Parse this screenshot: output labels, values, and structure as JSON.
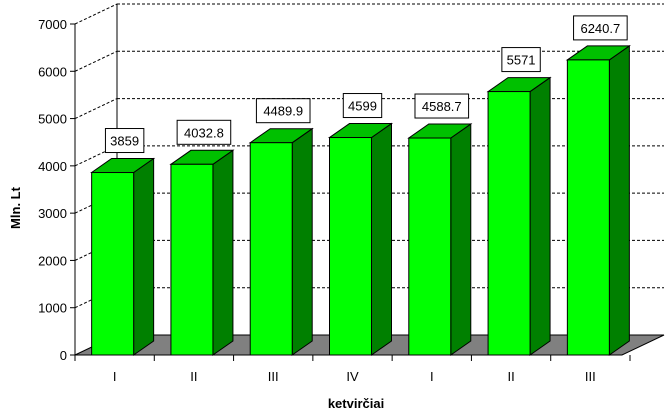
{
  "chart_data": {
    "type": "bar",
    "title": "",
    "xlabel": "ketvirčiai",
    "ylabel": "Mln. Lt",
    "categories": [
      "I",
      "II",
      "III",
      "IV",
      "I",
      "II",
      "III"
    ],
    "values": [
      3859,
      4032.8,
      4489.9,
      4599,
      4588.7,
      5571,
      6240.7
    ],
    "data_labels": [
      "3859",
      "4032.8",
      "4489.9",
      "4599",
      "4588.7",
      "5571",
      "6240.7"
    ],
    "ylim": [
      0,
      7000
    ],
    "yticks": [
      "0",
      "1000",
      "2000",
      "3000",
      "4000",
      "5000",
      "6000",
      "7000"
    ],
    "grid": true,
    "legend": "none",
    "style": "3d-column",
    "colors": {
      "bar_front": "#00ff00",
      "bar_side": "#008000",
      "bar_top": "#00c000",
      "floor": "#808080",
      "gridline": "#000000"
    }
  }
}
